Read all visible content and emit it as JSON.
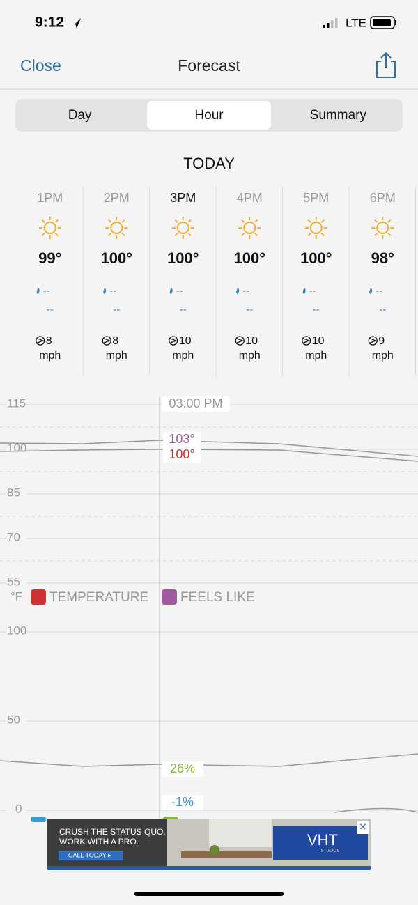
{
  "status_bar": {
    "time": "9:12",
    "network": "LTE"
  },
  "nav": {
    "close": "Close",
    "title": "Forecast"
  },
  "tabs": {
    "items": [
      "Day",
      "Hour",
      "Summary"
    ],
    "selected": 1
  },
  "section": "TODAY",
  "hours": [
    {
      "time": "1PM",
      "temp": "99°",
      "precip": "--",
      "precip_amount": "--",
      "wind": "8",
      "wind_unit": "mph"
    },
    {
      "time": "2PM",
      "temp": "100°",
      "precip": "--",
      "precip_amount": "--",
      "wind": "8",
      "wind_unit": "mph"
    },
    {
      "time": "3PM",
      "temp": "100°",
      "precip": "--",
      "precip_amount": "--",
      "wind": "10",
      "wind_unit": "mph"
    },
    {
      "time": "4PM",
      "temp": "100°",
      "precip": "--",
      "precip_amount": "--",
      "wind": "10",
      "wind_unit": "mph"
    },
    {
      "time": "5PM",
      "temp": "100°",
      "precip": "--",
      "precip_amount": "--",
      "wind": "10",
      "wind_unit": "mph"
    },
    {
      "time": "6PM",
      "temp": "98°",
      "precip": "--",
      "precip_amount": "--",
      "wind": "9",
      "wind_unit": "mph"
    }
  ],
  "selected_hour": 2,
  "temp_chart": {
    "yticks": [
      "115",
      "100",
      "85",
      "70",
      "55"
    ],
    "unit": "°F",
    "cursor_label": "03:00 PM",
    "feels_like_label": "103°",
    "temperature_label": "100°",
    "legend": [
      "TEMPERATURE",
      "FEELS LIKE"
    ]
  },
  "humidity_chart": {
    "yticks": [
      "100",
      "50",
      "0"
    ],
    "primary_label": "26%",
    "secondary_label": "-1%"
  },
  "ad": {
    "line1": "CRUSH THE STATUS QUO.",
    "line2": "WORK WITH A PRO.",
    "cta": "CALL TODAY ▸",
    "brand": "VHT",
    "brand_sub": "STUDIOS"
  }
}
